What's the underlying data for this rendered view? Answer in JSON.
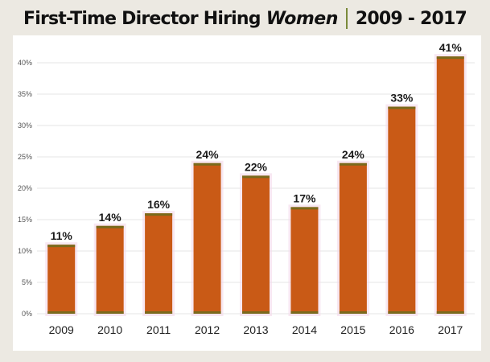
{
  "header": {
    "title_main": "First-Time Director Hiring",
    "title_emphasis": "Women",
    "title_range": "2009 - 2017"
  },
  "colors": {
    "bar_fill": "#c95a16",
    "bar_cap": "#7a6a1c",
    "bar_glow": "#f3d9ea",
    "gridline": "#e6e6e6",
    "background": "#ece9e2"
  },
  "chart_data": {
    "type": "bar",
    "title": "First-Time Director Hiring Women 2009 - 2017",
    "xlabel": "",
    "ylabel": "",
    "categories": [
      "2009",
      "2010",
      "2011",
      "2012",
      "2013",
      "2014",
      "2015",
      "2016",
      "2017"
    ],
    "values": [
      11,
      14,
      16,
      24,
      22,
      17,
      24,
      33,
      41
    ],
    "data_labels": [
      "11%",
      "14%",
      "16%",
      "24%",
      "22%",
      "17%",
      "24%",
      "33%",
      "41%"
    ],
    "ylim": [
      0,
      40
    ],
    "yticks": [
      0,
      5,
      10,
      15,
      20,
      25,
      30,
      35,
      40
    ],
    "ytick_labels": [
      "0%",
      "5%",
      "10%",
      "15%",
      "20%",
      "25%",
      "30%",
      "35%",
      "40%"
    ],
    "grid": true,
    "legend": "none"
  }
}
